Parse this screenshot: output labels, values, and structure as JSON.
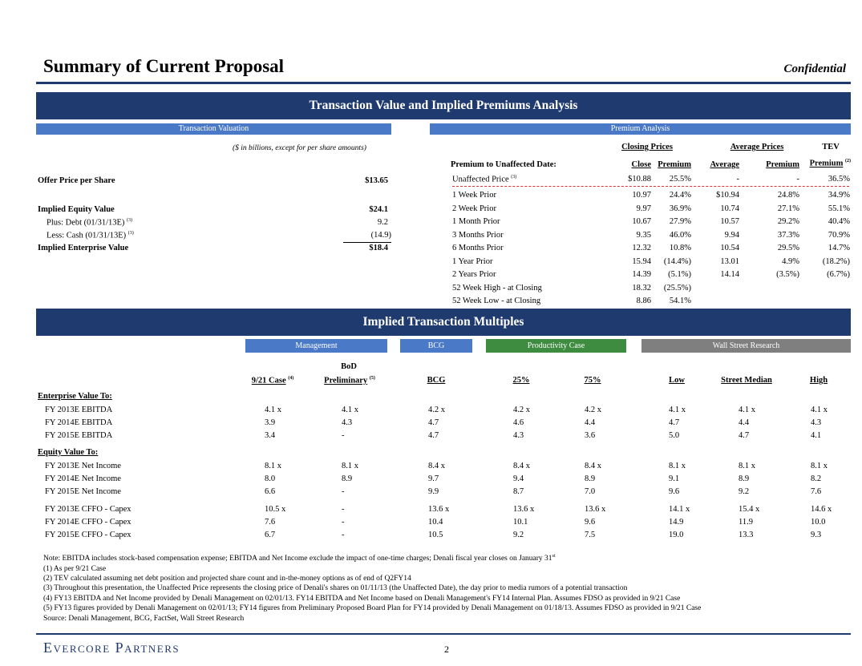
{
  "header": {
    "title": "Summary of Current Proposal",
    "confidential": "Confidential"
  },
  "top_banner": "Transaction Value and Implied Premiums Analysis",
  "valuation": {
    "header": "Transaction Valuation",
    "units_note": "($ in billions, except for per share amounts)",
    "rows": [
      {
        "label": "Offer Price per Share",
        "value": "$13.65"
      },
      {
        "label": "Implied Equity Value",
        "value": "$24.1"
      },
      {
        "label": "Plus: Debt (01/31/13E)",
        "value": "9.2",
        "sup": "(3)"
      },
      {
        "label": "Less: Cash (01/31/13E)",
        "value": "(14.9)",
        "sup": "(3)"
      },
      {
        "label": "Implied Enterprise Value",
        "value": "$18.4"
      }
    ]
  },
  "premium": {
    "header": "Premium Analysis",
    "group_closing": "Closing Prices",
    "group_average": "Average Prices",
    "group_tev": "TEV",
    "row_header": "Premium to Unaffected Date:",
    "cols": [
      "Close",
      "Premium",
      "Average",
      "Premium",
      "Premium"
    ],
    "tev_sup": "(2)",
    "unaffected": {
      "label": "Unaffected Price",
      "sup": "(3)",
      "values": [
        "$10.88",
        "25.5%",
        "-",
        "-",
        "36.5%"
      ]
    },
    "rows": [
      {
        "label": "1 Week Prior",
        "values": [
          "10.97",
          "24.4%",
          "$10.94",
          "24.8%",
          "34.9%"
        ]
      },
      {
        "label": "2 Week Prior",
        "values": [
          "9.97",
          "36.9%",
          "10.74",
          "27.1%",
          "55.1%"
        ]
      },
      {
        "label": "1 Month Prior",
        "values": [
          "10.67",
          "27.9%",
          "10.57",
          "29.2%",
          "40.4%"
        ]
      },
      {
        "label": "3 Months Prior",
        "values": [
          "9.35",
          "46.0%",
          "9.94",
          "37.3%",
          "70.9%"
        ]
      },
      {
        "label": "6 Months Prior",
        "values": [
          "12.32",
          "10.8%",
          "10.54",
          "29.5%",
          "14.7%"
        ]
      },
      {
        "label": "1 Year Prior",
        "values": [
          "15.94",
          "(14.4%)",
          "13.01",
          "4.9%",
          "(18.2%)"
        ]
      },
      {
        "label": "2 Years Prior",
        "values": [
          "14.39",
          "(5.1%)",
          "14.14",
          "(3.5%)",
          "(6.7%)"
        ]
      },
      {
        "label": "52 Week High - at Closing",
        "values": [
          "18.32",
          "(25.5%)",
          "",
          "",
          ""
        ]
      },
      {
        "label": "52 Week Low - at Closing",
        "values": [
          "8.86",
          "54.1%",
          "",
          "",
          ""
        ]
      }
    ]
  },
  "multiples_banner": "Implied Transaction Multiples",
  "multiples": {
    "groups": {
      "mgmt": "Management",
      "bcg": "BCG",
      "prod": "Productivity Case",
      "wsr": "Wall Street Research"
    },
    "bod_label": "BoD",
    "cols": [
      "9/21 Case",
      "Preliminary",
      "BCG",
      "25%",
      "75%",
      "Low",
      "Street Median",
      "High"
    ],
    "col_sups": [
      "(4)",
      "(5)"
    ],
    "ev_header": "Enterprise Value To:",
    "ev_rows": [
      {
        "label": "FY 2013E EBITDA",
        "values": [
          "4.1 x",
          "4.1 x",
          "4.2 x",
          "4.2 x",
          "4.2 x",
          "4.1 x",
          "4.1 x",
          "4.1 x"
        ]
      },
      {
        "label": "FY 2014E EBITDA",
        "values": [
          "3.9",
          "4.3",
          "4.7",
          "4.6",
          "4.4",
          "4.7",
          "4.4",
          "4.3"
        ]
      },
      {
        "label": "FY 2015E EBITDA",
        "values": [
          "3.4",
          "-",
          "4.7",
          "4.3",
          "3.6",
          "5.0",
          "4.7",
          "4.1"
        ]
      }
    ],
    "eq_header": "Equity Value To:",
    "eq_rows": [
      {
        "label": "FY 2013E Net Income",
        "values": [
          "8.1 x",
          "8.1 x",
          "8.4 x",
          "8.4 x",
          "8.4 x",
          "8.1 x",
          "8.1 x",
          "8.1 x"
        ]
      },
      {
        "label": "FY 2014E Net Income",
        "values": [
          "8.0",
          "8.9",
          "9.7",
          "9.4",
          "8.9",
          "9.1",
          "8.9",
          "8.2"
        ]
      },
      {
        "label": "FY 2015E Net Income",
        "values": [
          "6.6",
          "-",
          "9.9",
          "8.7",
          "7.0",
          "9.6",
          "9.2",
          "7.6"
        ]
      }
    ],
    "cf_rows": [
      {
        "label": "FY 2013E CFFO - Capex",
        "values": [
          "10.5 x",
          "-",
          "13.6 x",
          "13.6 x",
          "13.6 x",
          "14.1 x",
          "15.4 x",
          "14.6 x"
        ]
      },
      {
        "label": "FY 2014E CFFO - Capex",
        "values": [
          "7.6",
          "-",
          "10.4",
          "10.1",
          "9.6",
          "14.9",
          "11.9",
          "10.0"
        ]
      },
      {
        "label": "FY 2015E CFFO - Capex",
        "values": [
          "6.7",
          "-",
          "10.5",
          "9.2",
          "7.5",
          "19.0",
          "13.3",
          "9.3"
        ]
      }
    ]
  },
  "notes": {
    "main": "Note: EBITDA includes stock-based compensation expense; EBITDA and Net Income exclude the impact of one-time charges; Denali fiscal year closes on January 31",
    "main_sup": "st",
    "items": [
      "(1) As per 9/21 Case",
      "(2) TEV calculated assuming  net debt position and projected share count and in-the-money options as of end of Q2FY14",
      "(3) Throughout this presentation, the Unaffected Price represents the closing price of Denali's shares on 01/11/13 (the Unaffected Date), the day prior to media rumors of a potential transaction",
      "(4) FY13 EBITDA and Net Income provided by Denali Management on 02/01/13. FY14 EBITDA and Net Income based on Denali Management's FY14 Internal Plan. Assumes FDSO as provided in 9/21 Case",
      "(5) FY13 figures provided by Denali Management on 02/01/13; FY14 figures from Preliminary Proposed Board Plan for FY14 provided by Denali Management on 01/18/13.  Assumes FDSO as provided in 9/21 Case",
      "Source: Denali Management, BCG, FactSet, Wall Street Research"
    ]
  },
  "footer": {
    "brand": "Evercore Partners",
    "page": "2"
  }
}
